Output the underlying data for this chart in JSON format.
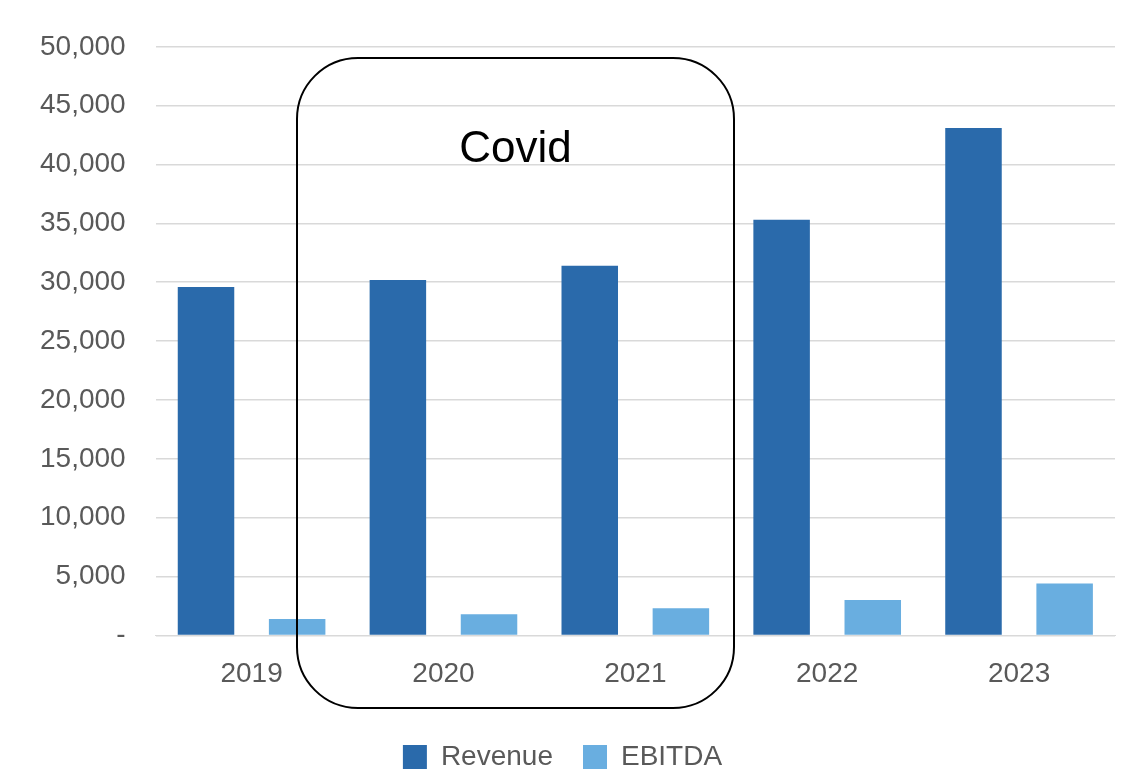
{
  "chart_data": {
    "type": "bar",
    "categories": [
      "2019",
      "2020",
      "2021",
      "2022",
      "2023"
    ],
    "series": [
      {
        "name": "Revenue",
        "color": "#2a6aab",
        "values": [
          29600,
          30200,
          31400,
          35300,
          43100
        ]
      },
      {
        "name": "EBITDA",
        "color": "#69aee0",
        "values": [
          1400,
          1800,
          2300,
          3000,
          4400
        ]
      }
    ],
    "ylim": [
      0,
      50000
    ],
    "yticks": [
      {
        "value": 0,
        "label": "-"
      },
      {
        "value": 5000,
        "label": "5,000"
      },
      {
        "value": 10000,
        "label": "10,000"
      },
      {
        "value": 15000,
        "label": "15,000"
      },
      {
        "value": 20000,
        "label": "20,000"
      },
      {
        "value": 25000,
        "label": "25,000"
      },
      {
        "value": 30000,
        "label": "30,000"
      },
      {
        "value": 35000,
        "label": "35,000"
      },
      {
        "value": 40000,
        "label": "40,000"
      },
      {
        "value": 45000,
        "label": "45,000"
      },
      {
        "value": 50000,
        "label": "50,000"
      }
    ],
    "grid": "y",
    "legend": "bottom",
    "annotations": [
      "Covid"
    ]
  }
}
